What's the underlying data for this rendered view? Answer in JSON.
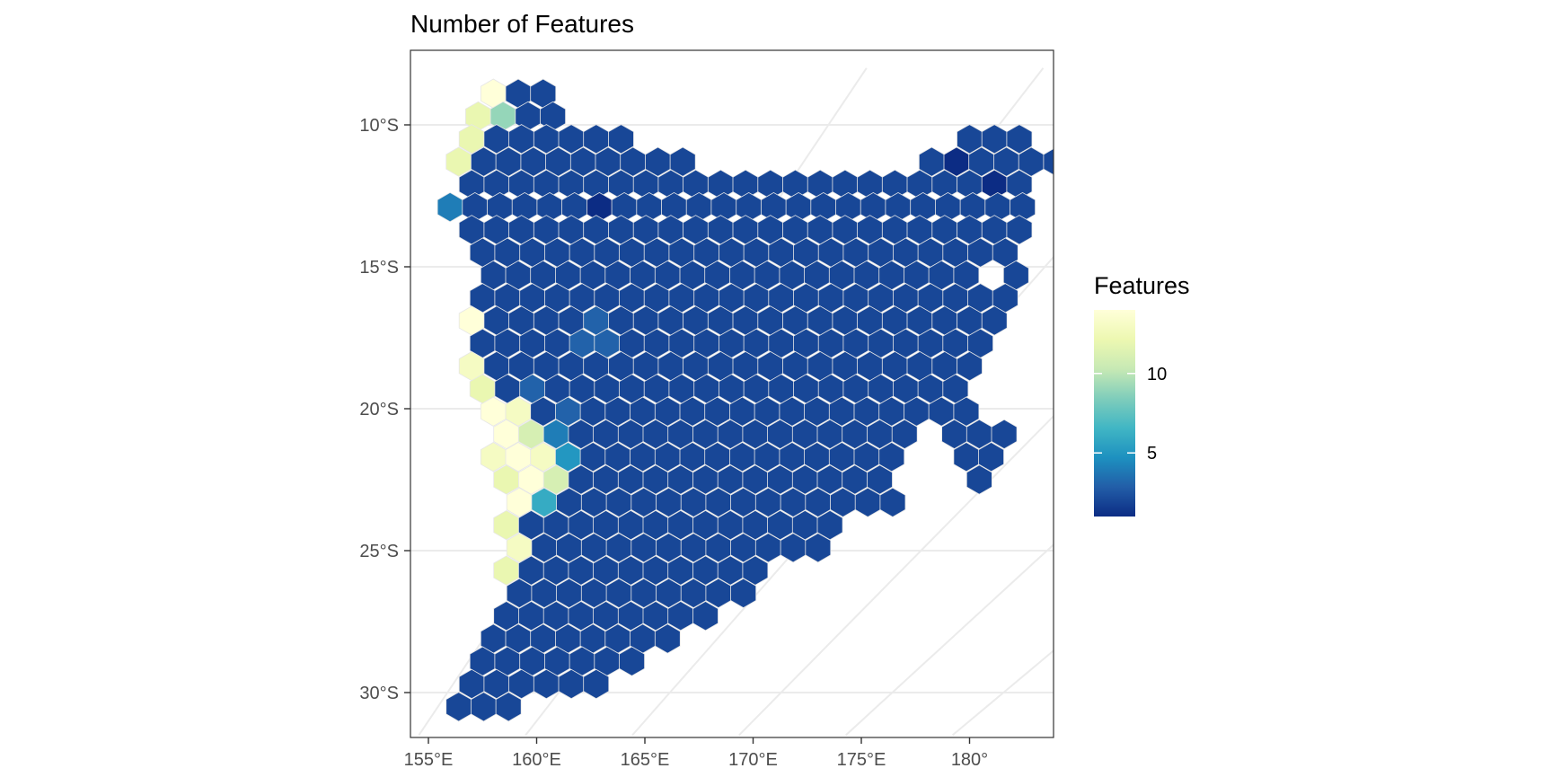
{
  "chart_data": {
    "type": "heatmap",
    "subtype": "hexbin map",
    "title": "Number of Features",
    "xlabel": "",
    "ylabel": "",
    "x_ticks": [
      155,
      160,
      165,
      170,
      175,
      180
    ],
    "x_tick_labels": [
      "155°E",
      "160°E",
      "165°E",
      "170°E",
      "175°E",
      "180°"
    ],
    "y_ticks": [
      -10,
      -15,
      -20,
      -25,
      -30
    ],
    "y_tick_labels": [
      "10°S",
      "15°S",
      "20°S",
      "25°S",
      "30°S"
    ],
    "grid": true,
    "projection": "curved graticule",
    "legend": {
      "title": "Features",
      "position": "right",
      "breaks": [
        5,
        10
      ],
      "break_labels": [
        "5",
        "10"
      ],
      "min": 1,
      "max": 14,
      "palette": [
        "#0c2c84",
        "#225ea8",
        "#1d91c0",
        "#41b6c4",
        "#7fcdbb",
        "#c7e9b4",
        "#edf8b1",
        "#ffffd9"
      ]
    },
    "rows_description": "Each row: lon0 = longitude of first hexagon, lat = row latitude, values = feature counts left to right; null = empty cell",
    "rows": [
      {
        "lat": -8.9,
        "lon0": 158.0,
        "values": [
          14,
          2,
          2
        ]
      },
      {
        "lat": -9.7,
        "lon0": 157.3,
        "values": [
          12,
          9,
          2,
          2
        ]
      },
      {
        "lat": -10.5,
        "lon0": 157.0,
        "values": [
          12,
          2,
          2,
          2,
          2,
          2,
          2,
          null,
          null,
          null,
          null,
          null,
          null,
          null,
          null,
          null,
          null,
          null,
          null,
          null,
          2,
          2,
          2
        ]
      },
      {
        "lat": -11.3,
        "lon0": 156.4,
        "values": [
          12,
          2,
          2,
          2,
          2,
          2,
          2,
          2,
          2,
          2,
          null,
          null,
          null,
          null,
          null,
          null,
          null,
          null,
          null,
          2,
          1,
          2,
          2,
          2,
          2
        ]
      },
      {
        "lat": -12.1,
        "lon0": 157.0,
        "values": [
          2,
          2,
          2,
          2,
          2,
          2,
          2,
          2,
          2,
          2,
          2,
          2,
          2,
          2,
          2,
          2,
          2,
          2,
          2,
          2,
          2,
          1,
          2
        ]
      },
      {
        "lat": -12.9,
        "lon0": 156.0,
        "values": [
          4,
          2,
          2,
          2,
          2,
          2,
          1,
          2,
          2,
          2,
          2,
          2,
          2,
          2,
          2,
          2,
          2,
          2,
          2,
          2,
          2,
          2,
          2,
          2
        ]
      },
      {
        "lat": -13.7,
        "lon0": 157.0,
        "values": [
          2,
          2,
          2,
          2,
          2,
          2,
          2,
          2,
          2,
          2,
          2,
          2,
          2,
          2,
          2,
          2,
          2,
          2,
          2,
          2,
          2,
          2,
          2
        ]
      },
      {
        "lat": -14.5,
        "lon0": 157.5,
        "values": [
          2,
          2,
          2,
          2,
          2,
          2,
          2,
          2,
          2,
          2,
          2,
          2,
          2,
          2,
          2,
          2,
          2,
          2,
          2,
          2,
          2,
          2
        ]
      },
      {
        "lat": -15.3,
        "lon0": 158.0,
        "values": [
          2,
          2,
          2,
          2,
          2,
          2,
          2,
          2,
          2,
          2,
          2,
          2,
          2,
          2,
          2,
          2,
          2,
          2,
          2,
          2,
          null,
          2
        ]
      },
      {
        "lat": -16.1,
        "lon0": 157.5,
        "values": [
          2,
          2,
          2,
          2,
          2,
          2,
          2,
          2,
          2,
          2,
          2,
          2,
          2,
          2,
          2,
          2,
          2,
          2,
          2,
          2,
          2,
          2
        ]
      },
      {
        "lat": -16.9,
        "lon0": 157.0,
        "values": [
          14,
          2,
          2,
          2,
          2,
          3,
          2,
          2,
          2,
          2,
          2,
          2,
          2,
          2,
          2,
          2,
          2,
          2,
          2,
          2,
          2,
          2
        ]
      },
      {
        "lat": -17.7,
        "lon0": 157.5,
        "values": [
          2,
          2,
          2,
          2,
          3,
          3,
          2,
          2,
          2,
          2,
          2,
          2,
          2,
          2,
          2,
          2,
          2,
          2,
          2,
          2,
          2
        ]
      },
      {
        "lat": -18.5,
        "lon0": 157.0,
        "values": [
          13,
          2,
          2,
          2,
          2,
          2,
          2,
          2,
          2,
          2,
          2,
          2,
          2,
          2,
          2,
          2,
          2,
          2,
          2,
          2,
          2
        ]
      },
      {
        "lat": -19.3,
        "lon0": 157.5,
        "values": [
          12,
          2,
          3,
          2,
          2,
          2,
          2,
          2,
          2,
          2,
          2,
          2,
          2,
          2,
          2,
          2,
          2,
          2,
          2,
          2
        ]
      },
      {
        "lat": -20.1,
        "lon0": 158.0,
        "values": [
          14,
          13,
          2,
          3,
          2,
          2,
          2,
          2,
          2,
          2,
          2,
          2,
          2,
          2,
          2,
          2,
          2,
          2,
          2,
          2
        ]
      },
      {
        "lat": -20.9,
        "lon0": 158.6,
        "values": [
          14,
          11,
          4,
          2,
          2,
          2,
          2,
          2,
          2,
          2,
          2,
          2,
          2,
          2,
          2,
          2,
          2,
          null,
          2,
          2,
          2
        ]
      },
      {
        "lat": -21.7,
        "lon0": 158.0,
        "values": [
          13,
          14,
          13,
          5,
          2,
          2,
          2,
          2,
          2,
          2,
          2,
          2,
          2,
          2,
          2,
          2,
          2,
          null,
          null,
          2,
          2
        ]
      },
      {
        "lat": -22.5,
        "lon0": 158.6,
        "values": [
          12,
          14,
          11,
          2,
          2,
          2,
          2,
          2,
          2,
          2,
          2,
          2,
          2,
          2,
          2,
          2,
          null,
          null,
          null,
          2
        ]
      },
      {
        "lat": -23.3,
        "lon0": 159.2,
        "values": [
          14,
          6,
          2,
          2,
          2,
          2,
          2,
          2,
          2,
          2,
          2,
          2,
          2,
          2,
          2,
          2
        ]
      },
      {
        "lat": -24.1,
        "lon0": 158.6,
        "values": [
          12,
          2,
          2,
          2,
          2,
          2,
          2,
          2,
          2,
          2,
          2,
          2,
          2,
          2
        ]
      },
      {
        "lat": -24.9,
        "lon0": 159.2,
        "values": [
          13,
          2,
          2,
          2,
          2,
          2,
          2,
          2,
          2,
          2,
          2,
          2,
          2
        ]
      },
      {
        "lat": -25.7,
        "lon0": 158.6,
        "values": [
          12,
          2,
          2,
          2,
          2,
          2,
          2,
          2,
          2,
          2,
          2
        ]
      },
      {
        "lat": -26.5,
        "lon0": 159.2,
        "values": [
          2,
          2,
          2,
          2,
          2,
          2,
          2,
          2,
          2,
          2
        ]
      },
      {
        "lat": -27.3,
        "lon0": 158.6,
        "values": [
          2,
          2,
          2,
          2,
          2,
          2,
          2,
          2,
          2
        ]
      },
      {
        "lat": -28.1,
        "lon0": 158.0,
        "values": [
          2,
          2,
          2,
          2,
          2,
          2,
          2,
          2
        ]
      },
      {
        "lat": -28.9,
        "lon0": 157.5,
        "values": [
          2,
          2,
          2,
          2,
          2,
          2,
          2
        ]
      },
      {
        "lat": -29.7,
        "lon0": 157.0,
        "values": [
          2,
          2,
          2,
          2,
          2,
          2
        ]
      },
      {
        "lat": -30.5,
        "lon0": 156.4,
        "values": [
          2,
          2,
          2
        ]
      }
    ]
  }
}
